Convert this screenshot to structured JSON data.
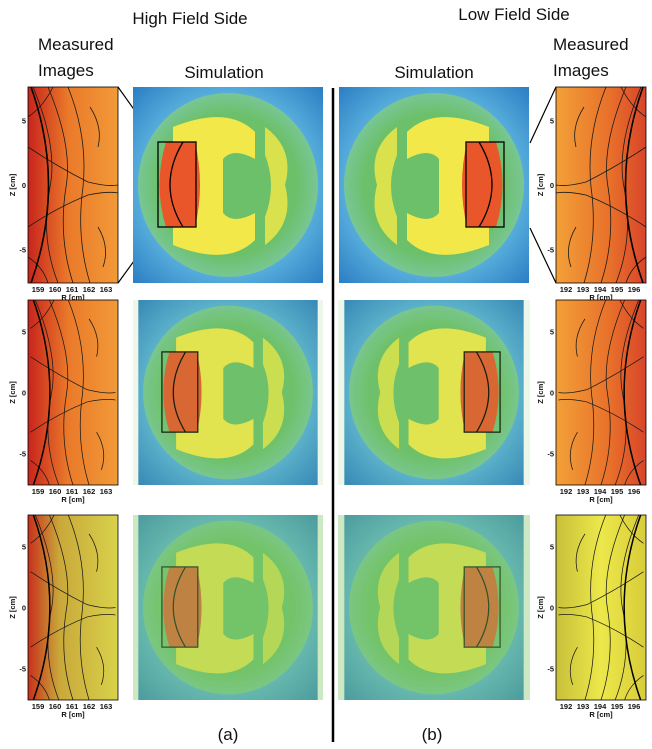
{
  "titles": {
    "high_field_side": "High Field Side",
    "low_field_side": "Low Field Side"
  },
  "column_labels": {
    "measured_left": [
      "Measured",
      "Images"
    ],
    "simulation_left": "Simulation",
    "simulation_right": "Simulation",
    "measured_right": [
      "Measured",
      "Images"
    ]
  },
  "measured_axes": {
    "left": {
      "x_ticks": [
        "159",
        "160",
        "161",
        "162",
        "163"
      ],
      "y_ticks": [
        "5",
        "0",
        "-5"
      ],
      "x_label": "R [cm]",
      "y_label": "Z [cm]"
    },
    "right": {
      "x_ticks": [
        "192",
        "193",
        "194",
        "195",
        "196"
      ],
      "y_ticks": [
        "5",
        "0",
        "-5"
      ],
      "x_label": "R [cm]",
      "y_label": "Z [cm]"
    }
  },
  "panel_labels": [
    "(a)",
    "(b)"
  ]
}
